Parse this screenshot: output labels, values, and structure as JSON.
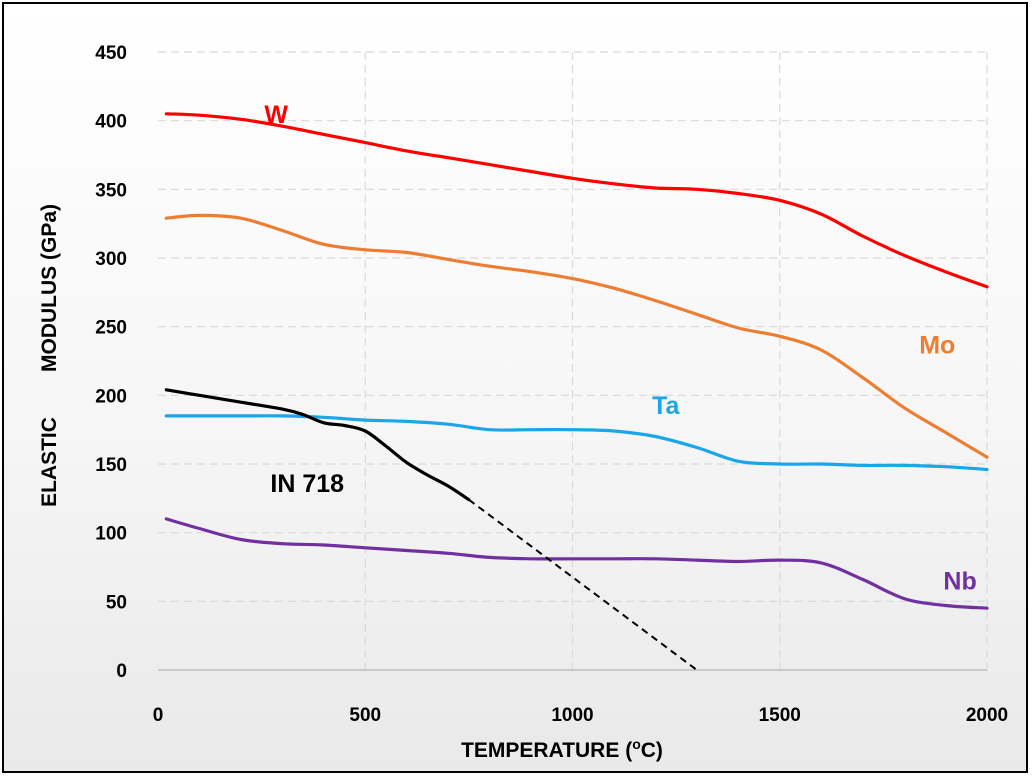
{
  "chart_data": {
    "type": "line",
    "xlabel": "TEMPERATURE (",
    "xlabel_sup": "o",
    "xlabel_unit": "C)",
    "ylabel_part1": "ELASTIC",
    "ylabel_part2": "MODULUS (GPa)",
    "xlim": [
      0,
      2000
    ],
    "ylim": [
      0,
      450
    ],
    "x_ticks": [
      0,
      500,
      1000,
      1500,
      2000
    ],
    "y_ticks": [
      0,
      50,
      100,
      150,
      200,
      250,
      300,
      350,
      400,
      450
    ],
    "grid": "dashed",
    "series": [
      {
        "name": "W",
        "color": "#ff0000",
        "label_at": [
          285,
          405
        ],
        "points": [
          [
            20,
            405
          ],
          [
            100,
            404
          ],
          [
            200,
            401
          ],
          [
            300,
            396
          ],
          [
            400,
            390
          ],
          [
            500,
            384
          ],
          [
            600,
            378
          ],
          [
            700,
            373
          ],
          [
            800,
            368
          ],
          [
            900,
            363
          ],
          [
            1000,
            358
          ],
          [
            1100,
            354
          ],
          [
            1200,
            351
          ],
          [
            1300,
            350
          ],
          [
            1400,
            347
          ],
          [
            1500,
            342
          ],
          [
            1600,
            332
          ],
          [
            1700,
            316
          ],
          [
            1800,
            302
          ],
          [
            1900,
            290
          ],
          [
            2000,
            279
          ]
        ]
      },
      {
        "name": "Mo",
        "color": "#ed7d31",
        "label_at": [
          1880,
          237
        ],
        "points": [
          [
            20,
            329
          ],
          [
            100,
            331
          ],
          [
            200,
            329
          ],
          [
            300,
            320
          ],
          [
            400,
            310
          ],
          [
            500,
            306
          ],
          [
            600,
            304
          ],
          [
            700,
            299
          ],
          [
            800,
            294
          ],
          [
            900,
            290
          ],
          [
            1000,
            285
          ],
          [
            1100,
            278
          ],
          [
            1200,
            269
          ],
          [
            1300,
            259
          ],
          [
            1400,
            249
          ],
          [
            1500,
            243
          ],
          [
            1600,
            233
          ],
          [
            1700,
            213
          ],
          [
            1800,
            191
          ],
          [
            1900,
            173
          ],
          [
            2000,
            155
          ]
        ]
      },
      {
        "name": "Ta",
        "color": "#1aa6e8",
        "label_at": [
          1225,
          193
        ],
        "points": [
          [
            20,
            185
          ],
          [
            100,
            185
          ],
          [
            200,
            185
          ],
          [
            300,
            185
          ],
          [
            400,
            184
          ],
          [
            500,
            182
          ],
          [
            600,
            181
          ],
          [
            700,
            179
          ],
          [
            800,
            175
          ],
          [
            900,
            175
          ],
          [
            1000,
            175
          ],
          [
            1100,
            174
          ],
          [
            1200,
            170
          ],
          [
            1300,
            162
          ],
          [
            1400,
            152
          ],
          [
            1500,
            150
          ],
          [
            1600,
            150
          ],
          [
            1700,
            149
          ],
          [
            1800,
            149
          ],
          [
            1900,
            148
          ],
          [
            2000,
            146
          ]
        ]
      },
      {
        "name": "Nb",
        "color": "#7030a0",
        "label_at": [
          1935,
          65
        ],
        "points": [
          [
            20,
            110
          ],
          [
            100,
            103
          ],
          [
            200,
            95
          ],
          [
            300,
            92
          ],
          [
            400,
            91
          ],
          [
            500,
            89
          ],
          [
            600,
            87
          ],
          [
            700,
            85
          ],
          [
            800,
            82
          ],
          [
            900,
            81
          ],
          [
            1000,
            81
          ],
          [
            1100,
            81
          ],
          [
            1200,
            81
          ],
          [
            1300,
            80
          ],
          [
            1400,
            79
          ],
          [
            1500,
            80
          ],
          [
            1600,
            78
          ],
          [
            1700,
            66
          ],
          [
            1800,
            52
          ],
          [
            1900,
            47
          ],
          [
            2000,
            45
          ]
        ]
      },
      {
        "name": "IN 718",
        "color": "#000000",
        "label_at": [
          360,
          136
        ],
        "points": [
          [
            20,
            204
          ],
          [
            100,
            200
          ],
          [
            200,
            195
          ],
          [
            300,
            190
          ],
          [
            350,
            186
          ],
          [
            400,
            180
          ],
          [
            450,
            178
          ],
          [
            500,
            174
          ],
          [
            550,
            163
          ],
          [
            600,
            151
          ],
          [
            650,
            142
          ],
          [
            700,
            134
          ],
          [
            750,
            124
          ]
        ],
        "extrapolation": [
          [
            750,
            124
          ],
          [
            1300,
            0
          ]
        ]
      }
    ]
  }
}
